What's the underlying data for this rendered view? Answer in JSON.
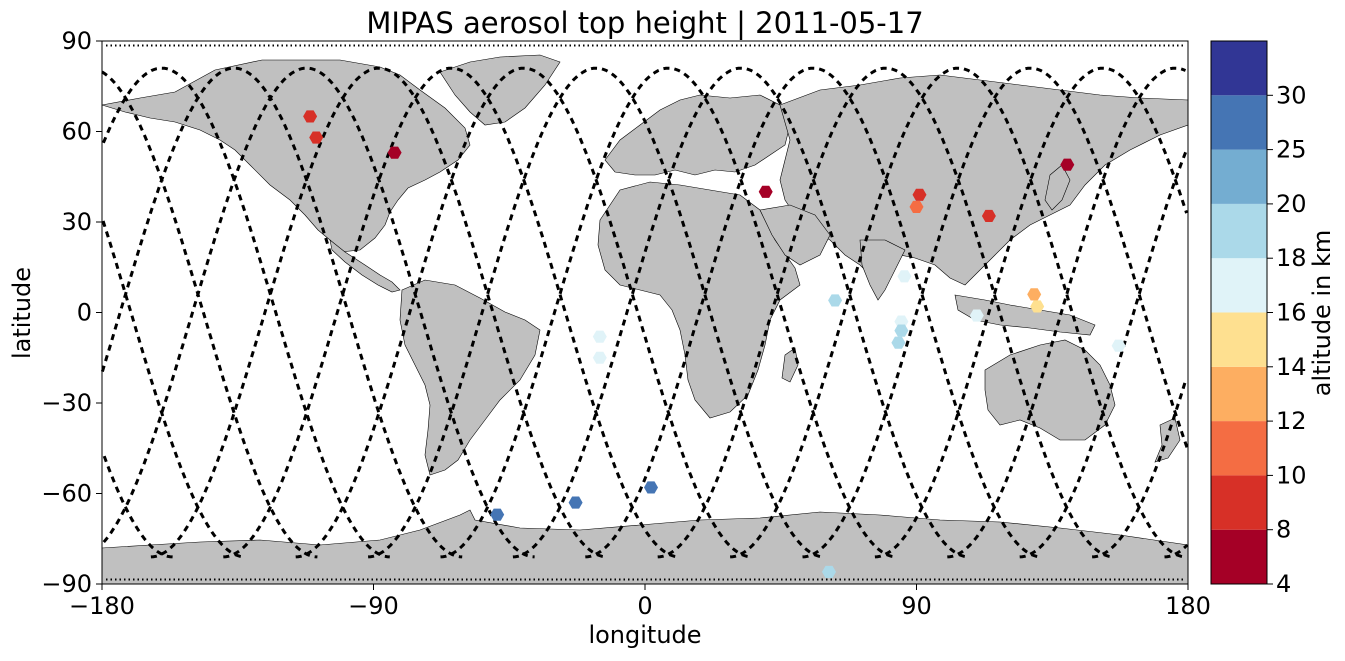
{
  "title": "MIPAS aerosol top height | 2011-05-17",
  "xlabel": "longitude",
  "ylabel": "latitude",
  "colorbar_label": "altitude in km",
  "colors": {
    "land": "#c0c0c0",
    "coast": "#000000",
    "track": "#000000"
  },
  "chart_data": {
    "type": "scatter",
    "projection": "plate-carree",
    "title": "MIPAS aerosol top height | 2011-05-17",
    "xlabel": "longitude",
    "ylabel": "latitude",
    "xlim": [
      -180,
      180
    ],
    "ylim": [
      -90,
      90
    ],
    "xticks": [
      -180,
      -90,
      0,
      90,
      180
    ],
    "yticks": [
      -90,
      -60,
      -30,
      0,
      30,
      60,
      90
    ],
    "xtick_labels": [
      "−180",
      "−90",
      "0",
      "90",
      "180"
    ],
    "ytick_labels": [
      "−90",
      "−60",
      "−30",
      "0",
      "30",
      "60",
      "90"
    ],
    "colorbar": {
      "label": "altitude in km",
      "bounds": [
        4,
        8,
        10,
        12,
        14,
        16,
        18,
        20,
        25,
        30
      ],
      "tick_labels": [
        "4",
        "8",
        "10",
        "12",
        "14",
        "16",
        "18",
        "20",
        "25",
        "30"
      ],
      "colors": [
        "#a50026",
        "#d73027",
        "#f46d43",
        "#fdae61",
        "#fee090",
        "#e0f3f8",
        "#abd9e9",
        "#74add1",
        "#4575b4",
        "#313695"
      ]
    },
    "points": [
      {
        "lon": -111,
        "lat": 65,
        "alt": 9
      },
      {
        "lon": -109,
        "lat": 58,
        "alt": 9
      },
      {
        "lon": -83,
        "lat": 53,
        "alt": 6
      },
      {
        "lon": 40,
        "lat": 40,
        "alt": 6
      },
      {
        "lon": 91,
        "lat": 39,
        "alt": 9
      },
      {
        "lon": 90,
        "lat": 35,
        "alt": 11
      },
      {
        "lon": 114,
        "lat": 32,
        "alt": 9
      },
      {
        "lon": 140,
        "lat": 49,
        "alt": 6
      },
      {
        "lon": 129,
        "lat": 6,
        "alt": 13
      },
      {
        "lon": 130,
        "lat": 2,
        "alt": 15
      },
      {
        "lon": 86,
        "lat": 12,
        "alt": 17
      },
      {
        "lon": 63,
        "lat": 4,
        "alt": 19
      },
      {
        "lon": 85,
        "lat": -3,
        "alt": 17
      },
      {
        "lon": 85,
        "lat": -6,
        "alt": 19
      },
      {
        "lon": 84,
        "lat": -10,
        "alt": 19
      },
      {
        "lon": 110,
        "lat": -1,
        "alt": 17
      },
      {
        "lon": 157,
        "lat": -11,
        "alt": 17
      },
      {
        "lon": -15,
        "lat": -8,
        "alt": 17
      },
      {
        "lon": -15,
        "lat": -15,
        "alt": 17
      },
      {
        "lon": 2,
        "lat": -58,
        "alt": 28
      },
      {
        "lon": -23,
        "lat": -63,
        "alt": 28
      },
      {
        "lon": -49,
        "lat": -67,
        "alt": 28
      },
      {
        "lon": 61,
        "lat": -86,
        "alt": 19
      }
    ],
    "orbit_track_lon_ascending_equator": [
      -174,
      -150,
      -126,
      -102,
      -78,
      -54,
      -30,
      -6,
      18,
      42,
      66,
      90,
      114,
      138,
      162
    ],
    "grid": false
  }
}
